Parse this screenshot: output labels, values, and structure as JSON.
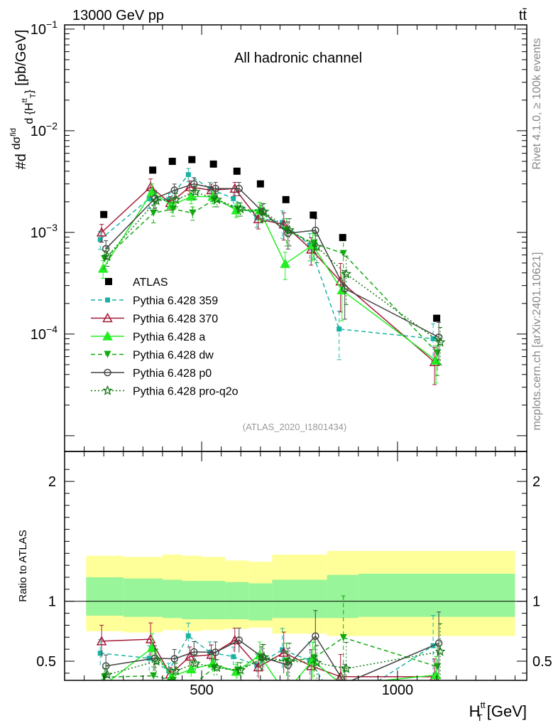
{
  "header": {
    "energy_label": "13000 GeV pp",
    "process_label": "tt̄"
  },
  "side": {
    "rivet_label": "Rivet 4.1.0, ≥ 100k events",
    "mcplots_label": "mcplots.cern.ch [arXiv:2401.10621]"
  },
  "chart_data": {
    "type": "line",
    "title": "All hadronic channel",
    "analysis_id": "(ATLAS_2020_I1801434)",
    "xlabel": "H_T^tt [GeV]",
    "ylabel": "#d dσ^fid / d {H_T^tt} [pb/GeV]",
    "xlabel_parts": {
      "main": "H",
      "sub": "T",
      "sup": "tt",
      "unit": "[GeV]"
    },
    "ylabel_parts": {
      "prefix": "#d",
      "num": "dσ",
      "num_sup": "fid",
      "den": "d {H",
      "den_sup": "tt",
      "den_sub": "T",
      "den_close": "}",
      "unit": "[pb/GeV]"
    },
    "xlim": [
      150,
      1330
    ],
    "ylim": [
      7e-06,
      0.11
    ],
    "y_scale": "log",
    "x_ticks": [
      500,
      1000
    ],
    "x_tick_labels": [
      "500",
      "1000"
    ],
    "y_ticks": [
      0.0001,
      0.001,
      0.01,
      0.1
    ],
    "y_tick_label_parts": [
      {
        "base": "10",
        "exp": "−4"
      },
      {
        "base": "10",
        "exp": "−3"
      },
      {
        "base": "10",
        "exp": "−2"
      },
      {
        "base": "10",
        "exp": "−1"
      }
    ],
    "x": [
      250,
      375,
      425,
      475,
      530,
      590,
      650,
      715,
      785,
      860,
      1100
    ],
    "bin_edges": [
      100,
      300,
      400,
      450,
      500,
      560,
      620,
      680,
      750,
      820,
      900,
      1300
    ],
    "data": {
      "name": "ATLAS",
      "values": [
        0.0015,
        0.0041,
        0.005,
        0.0052,
        0.0047,
        0.004,
        0.003,
        0.0021,
        0.00148,
        0.00089,
        0.000143
      ]
    },
    "series": [
      {
        "name": "Pythia 6.428 359",
        "color": "#1ab3a3",
        "dash": "6,4",
        "marker": "square",
        "values": [
          0.00085,
          0.00215,
          0.0021,
          0.0037,
          0.0027,
          0.00215,
          0.0014,
          0.00125,
          0.00075,
          0.000112,
          9e-05
        ]
      },
      {
        "name": "Pythia 6.428 370",
        "color": "#a31a38",
        "dash": "",
        "marker": "triangle-open",
        "values": [
          0.001,
          0.0028,
          0.00195,
          0.0028,
          0.0026,
          0.0027,
          0.00135,
          0.0012,
          0.00068,
          0.00033,
          5.3e-05
        ]
      },
      {
        "name": "Pythia 6.428 a",
        "color": "#22ee22",
        "dash": "",
        "marker": "triangle",
        "values": [
          0.00044,
          0.0025,
          0.00185,
          0.00225,
          0.00225,
          0.00165,
          0.00165,
          0.00049,
          0.00075,
          0.00027,
          5.5e-05
        ]
      },
      {
        "name": "Pythia 6.428 dw",
        "color": "#11aa11",
        "dash": "6,4",
        "marker": "triangle-down",
        "values": [
          0.00055,
          0.00155,
          0.0017,
          0.00155,
          0.0021,
          0.0017,
          0.00155,
          0.00105,
          0.00078,
          0.00062,
          6.5e-05
        ]
      },
      {
        "name": "Pythia 6.428 p0",
        "color": "#444444",
        "dash": "",
        "marker": "circle-open",
        "values": [
          0.00069,
          0.00215,
          0.0026,
          0.003,
          0.0027,
          0.0027,
          0.0016,
          0.00098,
          0.00105,
          0.00028,
          9.3e-05
        ]
      },
      {
        "name": "Pythia 6.428 pro-q2o",
        "color": "#117711",
        "dash": "2,3",
        "marker": "star",
        "values": [
          0.00058,
          0.00205,
          0.0021,
          0.0025,
          0.0021,
          0.0017,
          0.0016,
          0.00105,
          0.00072,
          0.00039,
          8.3e-05
        ]
      }
    ],
    "error_frac": [
      0.2,
      0.2,
      0.15,
      0.15,
      0.15,
      0.15,
      0.2,
      0.3,
      0.3,
      0.5,
      0.4
    ],
    "ratio": {
      "ylabel": "Ratio to ATLAS",
      "ylim": [
        0.34,
        2.25
      ],
      "y_ticks": [
        0.5,
        1,
        2
      ],
      "y_tick_labels": [
        "0.5",
        "1",
        "2"
      ],
      "band_inner_low": [
        0.88,
        0.87,
        0.86,
        0.85,
        0.85,
        0.85,
        0.84,
        0.86,
        0.86,
        0.86,
        0.87
      ],
      "band_inner_high": [
        1.2,
        1.19,
        1.18,
        1.17,
        1.17,
        1.16,
        1.15,
        1.18,
        1.18,
        1.22,
        1.23
      ],
      "band_outer_low": [
        0.75,
        0.74,
        0.76,
        0.75,
        0.76,
        0.77,
        0.78,
        0.73,
        0.73,
        0.71,
        0.71
      ],
      "band_outer_high": [
        1.38,
        1.37,
        1.39,
        1.38,
        1.37,
        1.34,
        1.33,
        1.39,
        1.39,
        1.42,
        1.42
      ]
    }
  }
}
